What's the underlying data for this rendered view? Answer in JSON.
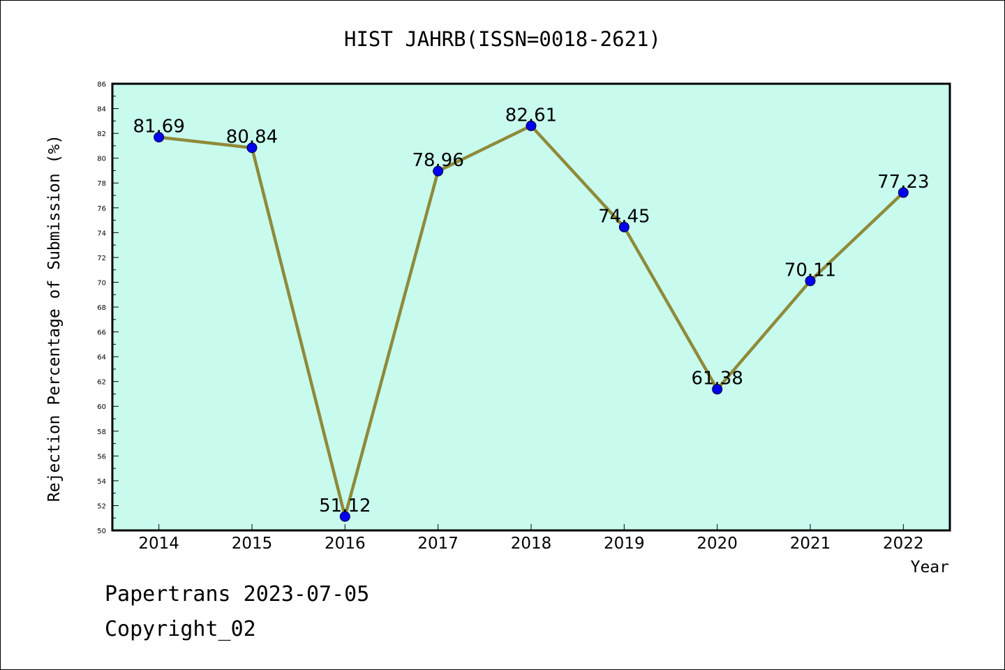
{
  "chart_data": {
    "type": "line",
    "title": "HIST JAHRB(ISSN=0018-2621)",
    "xlabel": "Year",
    "ylabel": "Rejection Percentage of Submission (%)",
    "categories": [
      "2014",
      "2015",
      "2016",
      "2017",
      "2018",
      "2019",
      "2020",
      "2021",
      "2022"
    ],
    "values": [
      81.69,
      80.84,
      51.12,
      78.96,
      82.61,
      74.45,
      61.38,
      70.11,
      77.23
    ],
    "value_labels": [
      "81.69",
      "80.84",
      "51.12",
      "78.96",
      "82.61",
      "74.45",
      "61.38",
      "70.11",
      "77.23"
    ],
    "ylim": [
      50,
      86
    ],
    "y_major_step": 2,
    "y_minor_step": 1,
    "grid": false,
    "colors": {
      "plot_background": "#c8fbee",
      "line": "#8f8a3a",
      "marker": "#0000ee"
    }
  },
  "footer": {
    "line1": "Papertrans 2023-07-05",
    "line2": "Copyright_02"
  }
}
